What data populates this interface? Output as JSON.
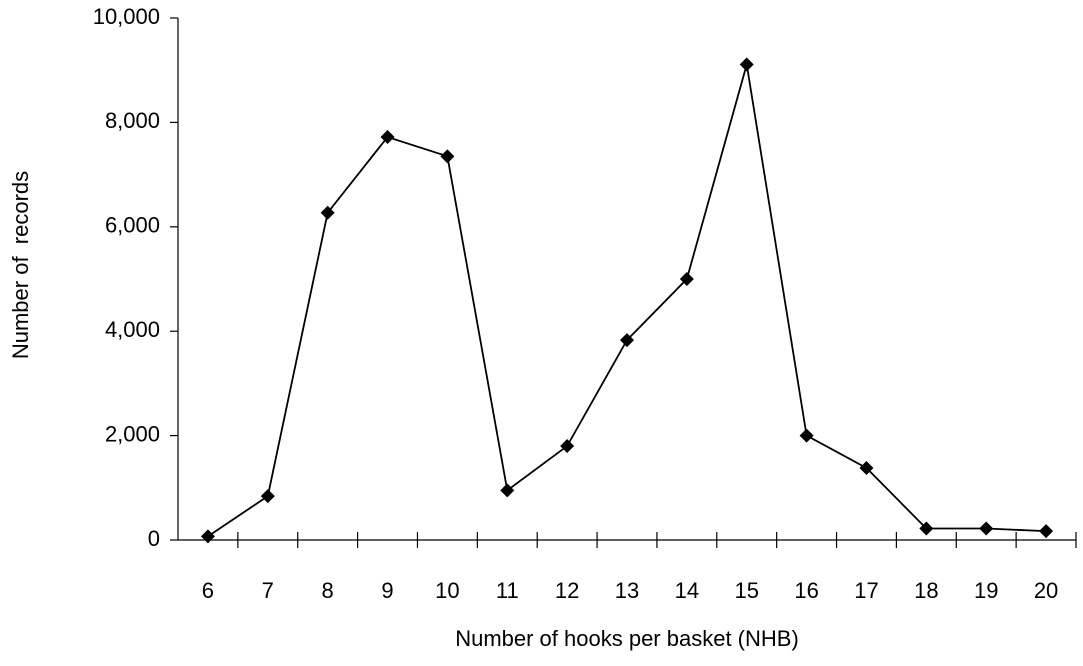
{
  "chart_data": {
    "type": "line",
    "x_label": "Number of hooks per basket (NHB)",
    "y_label": "Number of  records",
    "categories": [
      "6",
      "7",
      "8",
      "9",
      "10",
      "11",
      "12",
      "13",
      "14",
      "15",
      "16",
      "17",
      "18",
      "19",
      "20"
    ],
    "series": [
      {
        "name": "Number of records",
        "color": "#000000",
        "values": [
          70,
          840,
          6270,
          7720,
          7350,
          950,
          1800,
          3830,
          5000,
          9110,
          2000,
          1380,
          220,
          220,
          170
        ]
      }
    ],
    "ylim": [
      0,
      10000
    ],
    "yticks": [
      0,
      {
        "value": 2000,
        "label": "2,000"
      },
      {
        "value": 4000,
        "label": "4,000"
      },
      {
        "value": 6000,
        "label": "6,000"
      },
      {
        "value": 8000,
        "label": "8,000"
      },
      {
        "value": 10000,
        "label": "10,000"
      }
    ],
    "grid": false
  }
}
